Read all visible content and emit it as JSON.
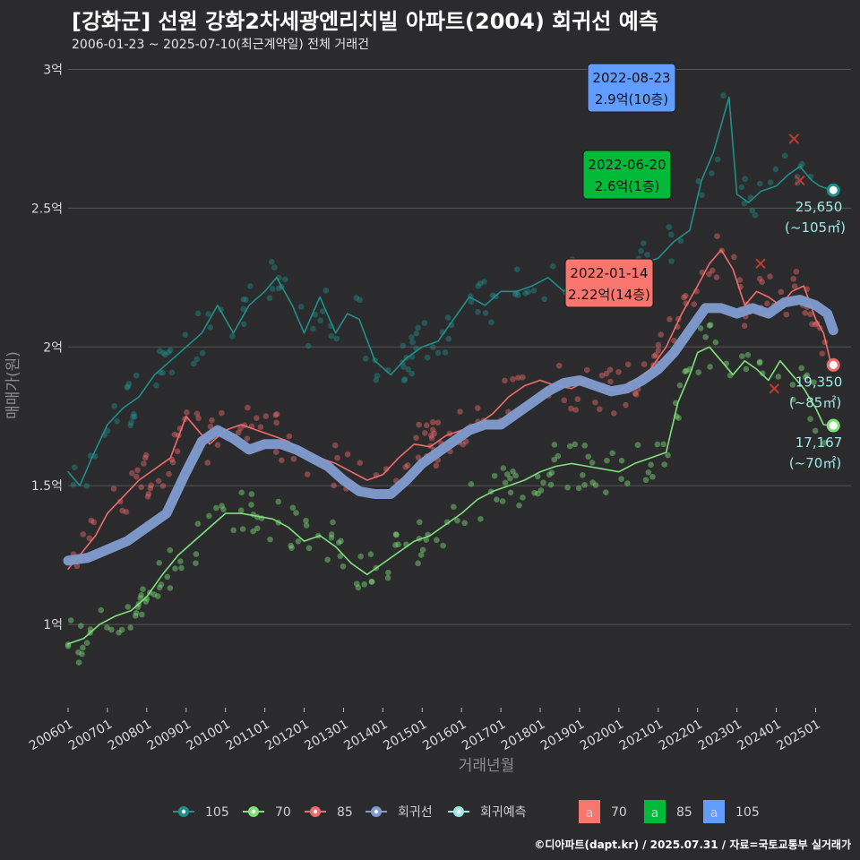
{
  "title": "[강화군] 선원 강화2차세광엔리치빌 아파트(2004) 회귀선 예측",
  "subtitle": "2006-01-23 ~ 2025-07-10(최근계약일) 전체 거래건",
  "caption": "©디아파트(dapt.kr) / 2025.07.31 / 자료=국토교통부 실거래가",
  "colors": {
    "background": "#2b2b2d",
    "grid": "#555555",
    "s105": "#1f8f8a",
    "s70": "#7fe07a",
    "s85": "#f06b6b",
    "regression": "#7f9cd0",
    "forecast": "#9fe8e6",
    "box70": "#f8766d",
    "box85": "#00ba38",
    "box105": "#619cff"
  },
  "chart_data": {
    "type": "line",
    "xlabel": "거래년월",
    "ylabel": "매매가(원)",
    "xlim": [
      2006.0,
      2025.9
    ],
    "ylim": [
      0.7,
      3.05
    ],
    "x_ticks": [
      {
        "label": "200601",
        "value": 2006.0
      },
      {
        "label": "200701",
        "value": 2007.0
      },
      {
        "label": "200801",
        "value": 2008.0
      },
      {
        "label": "200901",
        "value": 2009.0
      },
      {
        "label": "201001",
        "value": 2010.0
      },
      {
        "label": "201101",
        "value": 2011.0
      },
      {
        "label": "201201",
        "value": 2012.0
      },
      {
        "label": "201301",
        "value": 2013.0
      },
      {
        "label": "201401",
        "value": 2014.0
      },
      {
        "label": "201501",
        "value": 2015.0
      },
      {
        "label": "201601",
        "value": 2016.0
      },
      {
        "label": "201701",
        "value": 2017.0
      },
      {
        "label": "201801",
        "value": 2018.0
      },
      {
        "label": "201901",
        "value": 2019.0
      },
      {
        "label": "202001",
        "value": 2020.0
      },
      {
        "label": "202101",
        "value": 2021.0
      },
      {
        "label": "202201",
        "value": 2022.0
      },
      {
        "label": "202301",
        "value": 2023.0
      },
      {
        "label": "202401",
        "value": 2024.0
      },
      {
        "label": "202501",
        "value": 2025.0
      }
    ],
    "y_ticks": [
      {
        "label": "1억",
        "value": 1.0
      },
      {
        "label": "1.5억",
        "value": 1.5
      },
      {
        "label": "2억",
        "value": 2.0
      },
      {
        "label": "2.5억",
        "value": 2.5
      },
      {
        "label": "3억",
        "value": 3.0
      }
    ],
    "series": [
      {
        "name": "105",
        "color": "#1f8f8a",
        "x": [
          2006.0,
          2006.3,
          2006.6,
          2007.0,
          2007.4,
          2007.8,
          2008.2,
          2008.6,
          2009.0,
          2009.4,
          2009.8,
          2010.2,
          2010.6,
          2011.0,
          2011.3,
          2011.7,
          2012.0,
          2012.4,
          2012.8,
          2013.1,
          2013.4,
          2013.8,
          2014.2,
          2014.6,
          2015.0,
          2015.4,
          2015.8,
          2016.2,
          2016.6,
          2017.0,
          2017.4,
          2017.8,
          2018.2,
          2018.6,
          2019.0,
          2019.4,
          2019.8,
          2020.2,
          2020.6,
          2021.0,
          2021.4,
          2021.8,
          2022.1,
          2022.4,
          2022.6,
          2022.8,
          2023.0,
          2023.3,
          2023.6,
          2024.0,
          2024.3,
          2024.6,
          2024.9,
          2025.1,
          2025.4
        ],
        "y": [
          1.55,
          1.5,
          1.6,
          1.72,
          1.78,
          1.82,
          1.9,
          1.95,
          2.0,
          2.05,
          2.15,
          2.05,
          2.15,
          2.2,
          2.25,
          2.15,
          2.05,
          2.18,
          2.05,
          2.12,
          2.1,
          1.95,
          1.9,
          1.96,
          2.0,
          2.02,
          2.1,
          2.18,
          2.15,
          2.2,
          2.2,
          2.22,
          2.25,
          2.2,
          2.3,
          2.2,
          2.25,
          2.28,
          2.3,
          2.32,
          2.38,
          2.42,
          2.6,
          2.7,
          2.8,
          2.9,
          2.55,
          2.52,
          2.56,
          2.58,
          2.62,
          2.65,
          2.6,
          2.58,
          2.565
        ]
      },
      {
        "name": "70",
        "color": "#7fe07a",
        "x": [
          2006.0,
          2006.4,
          2006.8,
          2007.2,
          2007.6,
          2008.0,
          2008.4,
          2008.8,
          2009.2,
          2009.6,
          2010.0,
          2010.4,
          2010.8,
          2011.2,
          2011.6,
          2012.0,
          2012.4,
          2012.8,
          2013.2,
          2013.6,
          2014.0,
          2014.4,
          2014.8,
          2015.2,
          2015.6,
          2016.0,
          2016.4,
          2016.8,
          2017.2,
          2017.6,
          2018.0,
          2018.4,
          2018.8,
          2019.2,
          2019.6,
          2020.0,
          2020.4,
          2020.8,
          2021.2,
          2021.5,
          2021.8,
          2022.0,
          2022.3,
          2022.6,
          2022.9,
          2023.2,
          2023.5,
          2023.8,
          2024.1,
          2024.4,
          2024.7,
          2025.0,
          2025.2,
          2025.4
        ],
        "y": [
          0.93,
          0.95,
          1.0,
          1.03,
          1.05,
          1.1,
          1.18,
          1.25,
          1.3,
          1.35,
          1.4,
          1.4,
          1.39,
          1.38,
          1.35,
          1.3,
          1.32,
          1.28,
          1.22,
          1.18,
          1.22,
          1.26,
          1.3,
          1.32,
          1.36,
          1.4,
          1.45,
          1.48,
          1.5,
          1.52,
          1.55,
          1.57,
          1.58,
          1.57,
          1.56,
          1.55,
          1.58,
          1.6,
          1.62,
          1.8,
          1.9,
          1.98,
          2.0,
          1.95,
          1.9,
          1.95,
          1.92,
          1.88,
          1.95,
          1.9,
          1.85,
          1.78,
          1.72,
          1.7167
        ]
      },
      {
        "name": "85",
        "color": "#f06b6b",
        "x": [
          2006.0,
          2006.3,
          2006.7,
          2007.0,
          2007.4,
          2007.8,
          2008.2,
          2008.6,
          2009.0,
          2009.3,
          2009.6,
          2010.0,
          2010.4,
          2010.8,
          2011.2,
          2011.6,
          2012.0,
          2012.4,
          2012.8,
          2013.2,
          2013.6,
          2014.0,
          2014.4,
          2014.8,
          2015.2,
          2015.6,
          2016.0,
          2016.4,
          2016.8,
          2017.2,
          2017.6,
          2018.0,
          2018.4,
          2018.8,
          2019.2,
          2019.6,
          2020.0,
          2020.4,
          2020.8,
          2021.2,
          2021.6,
          2022.0,
          2022.3,
          2022.6,
          2022.9,
          2023.2,
          2023.5,
          2023.8,
          2024.1,
          2024.4,
          2024.7,
          2025.0,
          2025.2,
          2025.4
        ],
        "y": [
          1.2,
          1.25,
          1.32,
          1.4,
          1.46,
          1.52,
          1.56,
          1.6,
          1.75,
          1.7,
          1.65,
          1.7,
          1.72,
          1.7,
          1.68,
          1.66,
          1.62,
          1.6,
          1.58,
          1.55,
          1.52,
          1.54,
          1.6,
          1.65,
          1.64,
          1.68,
          1.7,
          1.72,
          1.76,
          1.82,
          1.86,
          1.88,
          1.86,
          1.85,
          1.88,
          1.85,
          1.84,
          1.88,
          1.92,
          2.0,
          2.12,
          2.22,
          2.3,
          2.35,
          2.28,
          2.15,
          2.2,
          2.18,
          2.15,
          2.2,
          2.22,
          2.1,
          2.05,
          1.935
        ]
      },
      {
        "name": "회귀선",
        "color": "#7f9cd0",
        "x": [
          2006.0,
          2006.5,
          2007.0,
          2007.5,
          2008.0,
          2008.5,
          2009.0,
          2009.4,
          2009.8,
          2010.2,
          2010.6,
          2011.0,
          2011.4,
          2011.8,
          2012.2,
          2012.6,
          2013.0,
          2013.4,
          2013.8,
          2014.2,
          2014.6,
          2015.0,
          2015.4,
          2015.8,
          2016.2,
          2016.6,
          2017.0,
          2017.4,
          2017.8,
          2018.2,
          2018.6,
          2019.0,
          2019.4,
          2019.8,
          2020.2,
          2020.6,
          2021.0,
          2021.4,
          2021.8,
          2022.2,
          2022.6,
          2023.0,
          2023.4,
          2023.8,
          2024.2,
          2024.6,
          2025.0,
          2025.3,
          2025.45
        ],
        "y": [
          1.23,
          1.24,
          1.27,
          1.3,
          1.35,
          1.4,
          1.55,
          1.66,
          1.7,
          1.67,
          1.63,
          1.65,
          1.65,
          1.63,
          1.6,
          1.57,
          1.52,
          1.48,
          1.47,
          1.47,
          1.52,
          1.58,
          1.62,
          1.66,
          1.7,
          1.72,
          1.72,
          1.76,
          1.8,
          1.84,
          1.87,
          1.88,
          1.86,
          1.84,
          1.85,
          1.88,
          1.92,
          1.98,
          2.06,
          2.14,
          2.14,
          2.12,
          2.14,
          2.12,
          2.16,
          2.17,
          2.15,
          2.12,
          2.06
        ]
      }
    ],
    "forecast_points": [
      {
        "series": "105",
        "x": 2025.45,
        "y": 2.565
      },
      {
        "series": "85",
        "x": 2025.45,
        "y": 1.935
      },
      {
        "series": "70",
        "x": 2025.45,
        "y": 1.7167
      }
    ],
    "end_labels": [
      {
        "value": "25,650",
        "area": "(~105㎡)",
        "y": 2.565,
        "color": "#9fe8e6"
      },
      {
        "value": "19,350",
        "area": "(~85㎡)",
        "y": 1.935,
        "color": "#9fe8e6"
      },
      {
        "value": "17,167",
        "area": "(~70㎡)",
        "y": 1.7167,
        "color": "#9fe8e6"
      }
    ],
    "annotations": [
      {
        "date": "2022-08-23",
        "price": "2.9억(10층)",
        "series": "105",
        "x": 2022.64,
        "y": 2.9,
        "color": "#619cff"
      },
      {
        "date": "2022-06-20",
        "price": "2.6억(1층)",
        "series": "70",
        "x": 2022.47,
        "y": 2.6,
        "color": "#00ba38"
      },
      {
        "date": "2022-01-14",
        "price": "2.22억(14층)",
        "series": "85",
        "x": 2022.04,
        "y": 2.22,
        "color": "#f8766d"
      }
    ],
    "cancelled_marks": [
      {
        "x": 2024.45,
        "y": 2.75
      },
      {
        "x": 2024.6,
        "y": 2.6
      },
      {
        "x": 2023.95,
        "y": 1.85
      },
      {
        "x": 2023.6,
        "y": 2.3
      }
    ],
    "legend": {
      "position": "bottom",
      "line_items": [
        {
          "label": "105",
          "color": "#1f8f8a"
        },
        {
          "label": "70",
          "color": "#7fe07a"
        },
        {
          "label": "85",
          "color": "#f06b6b"
        },
        {
          "label": "회귀선",
          "color": "#7f9cd0"
        },
        {
          "label": "회귀예측",
          "color": "#9fe8e6"
        }
      ],
      "box_items": [
        {
          "glyph": "a",
          "label": "70",
          "color": "#f8766d"
        },
        {
          "glyph": "a",
          "label": "85",
          "color": "#00ba38"
        },
        {
          "glyph": "a",
          "label": "105",
          "color": "#619cff"
        }
      ]
    }
  }
}
